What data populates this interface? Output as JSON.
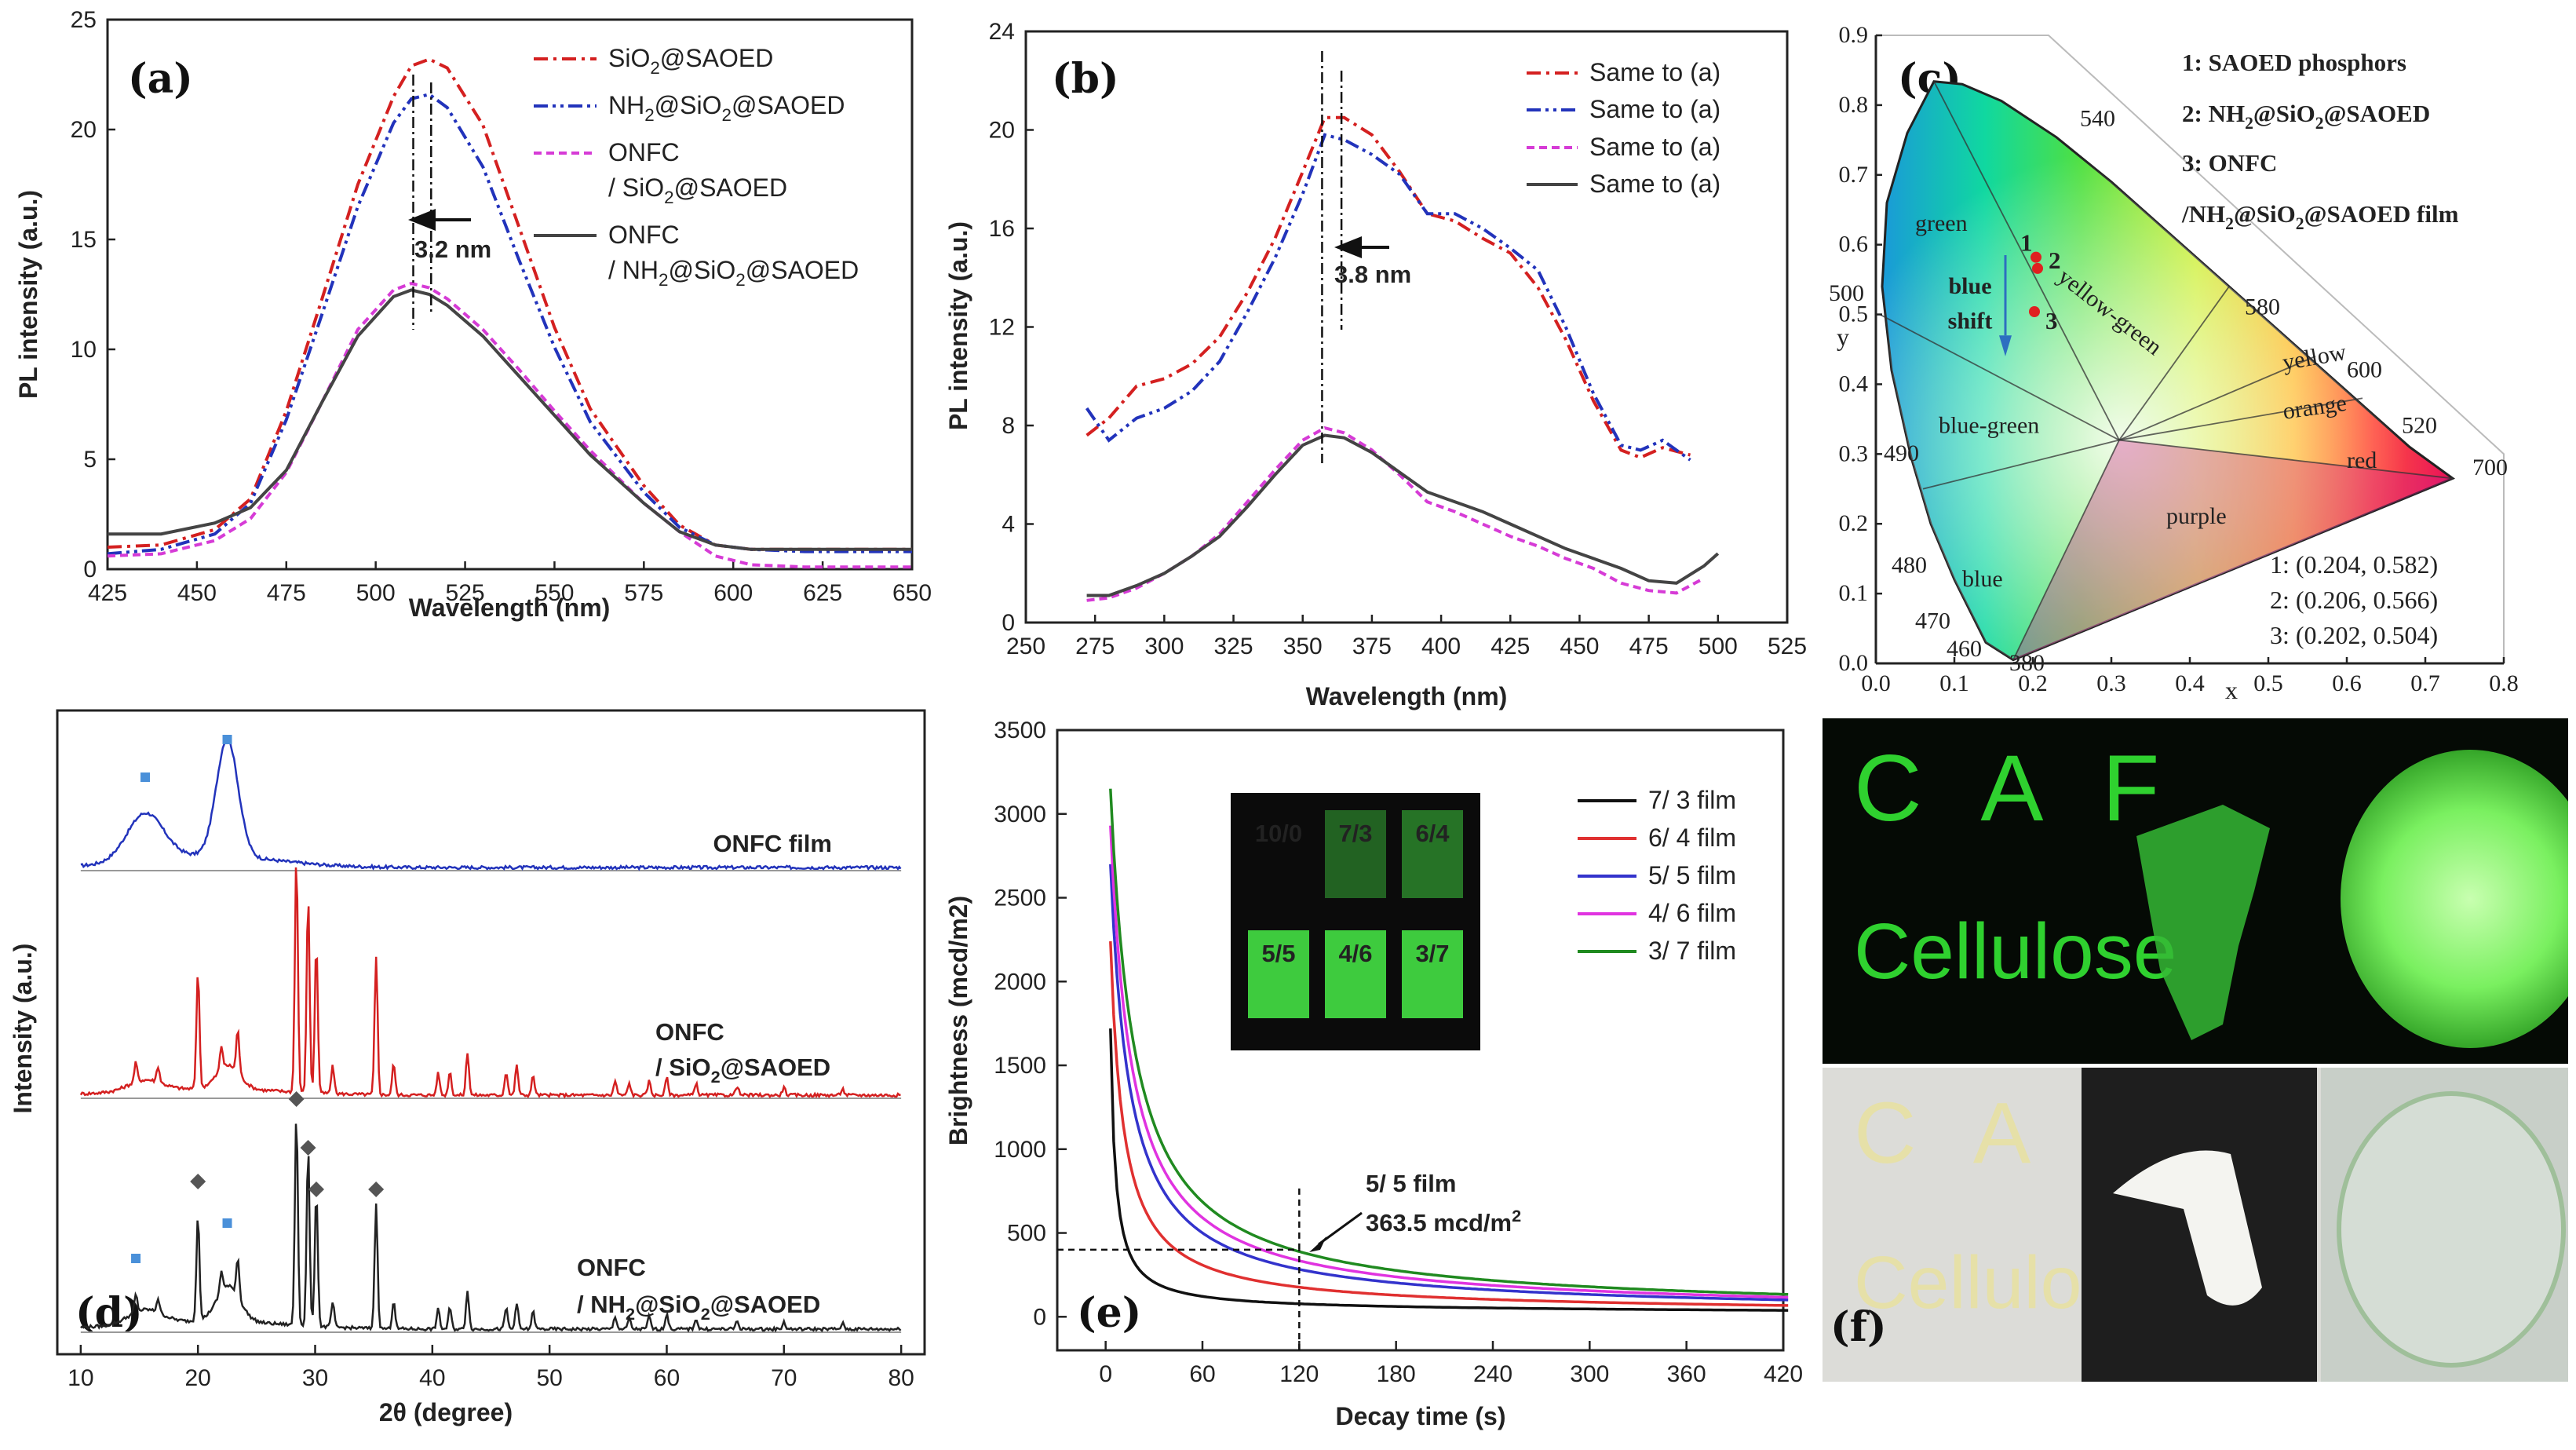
{
  "chart_data": [
    {
      "id": "a",
      "type": "line",
      "panel_label": "(a)",
      "xlabel": "Wavelength (nm)",
      "ylabel": "PL intensity (a.u.)",
      "xlim": [
        425,
        650
      ],
      "ylim": [
        0,
        25
      ],
      "xticks": [
        425,
        450,
        475,
        500,
        525,
        550,
        575,
        600,
        625,
        650
      ],
      "yticks": [
        0,
        5,
        10,
        15,
        20,
        25
      ],
      "series": [
        {
          "name": "SiO2@SAOED",
          "color": "#d42020",
          "dash": "18 7 4 7",
          "x": [
            425,
            440,
            455,
            465,
            475,
            485,
            495,
            505,
            510,
            515,
            520,
            530,
            540,
            550,
            560,
            575,
            585,
            595,
            605,
            620,
            635,
            650
          ],
          "y": [
            1.0,
            1.1,
            1.8,
            3.2,
            7.2,
            12.3,
            17.5,
            21.5,
            22.9,
            23.2,
            22.8,
            20.2,
            15.6,
            11.0,
            7.3,
            3.8,
            2.0,
            1.1,
            0.9,
            0.9,
            0.9,
            0.9
          ]
        },
        {
          "name": "NH2@SiO2@SAOED",
          "color": "#2233bb",
          "dash": "18 6 4 6 4 6",
          "x": [
            425,
            440,
            455,
            465,
            475,
            485,
            495,
            505,
            510,
            515,
            520,
            530,
            540,
            550,
            560,
            575,
            585,
            595,
            605,
            620,
            635,
            650
          ],
          "y": [
            0.7,
            0.9,
            1.6,
            3.0,
            6.8,
            11.6,
            16.5,
            20.3,
            21.4,
            21.6,
            21.0,
            18.3,
            14.1,
            10.1,
            6.7,
            3.5,
            1.9,
            1.1,
            0.9,
            0.8,
            0.8,
            0.8
          ]
        },
        {
          "name": "ONFC / SiO2@SAOED",
          "color": "#d63bd6",
          "dash": "10 6",
          "x": [
            425,
            440,
            455,
            465,
            475,
            485,
            495,
            505,
            510,
            515,
            520,
            530,
            540,
            550,
            560,
            575,
            585,
            595,
            605,
            620,
            635,
            650
          ],
          "y": [
            0.6,
            0.7,
            1.3,
            2.3,
            4.4,
            7.6,
            10.9,
            12.7,
            13.0,
            12.8,
            12.3,
            10.9,
            9.1,
            7.2,
            5.4,
            3.0,
            1.7,
            0.6,
            0.2,
            0.1,
            0.1,
            0.1
          ]
        },
        {
          "name": "ONFC / NH2@SiO2@SAOED",
          "color": "#444444",
          "dash": "",
          "x": [
            425,
            440,
            455,
            465,
            475,
            485,
            495,
            505,
            510,
            515,
            520,
            530,
            540,
            550,
            560,
            575,
            585,
            595,
            605,
            620,
            635,
            650
          ],
          "y": [
            1.6,
            1.6,
            2.1,
            2.8,
            4.5,
            7.6,
            10.6,
            12.4,
            12.7,
            12.5,
            12.0,
            10.6,
            8.8,
            7.0,
            5.2,
            3.0,
            1.7,
            1.1,
            0.9,
            0.9,
            0.9,
            0.9
          ]
        }
      ],
      "legend_lines": [
        "SiO2@SAOED",
        "NH2@SiO2@SAOED",
        "ONFC",
        "/ SiO2@SAOED",
        "ONFC",
        "/ NH2@SiO2@SAOED"
      ],
      "annotation": "3.2 nm"
    },
    {
      "id": "b",
      "type": "line",
      "panel_label": "(b)",
      "xlabel": "Wavelength (nm)",
      "ylabel": "PL intensity (a.u.)",
      "xlim": [
        250,
        525
      ],
      "ylim": [
        0,
        24
      ],
      "xticks": [
        250,
        275,
        300,
        325,
        350,
        375,
        400,
        425,
        450,
        475,
        500,
        525
      ],
      "yticks": [
        0,
        4,
        8,
        12,
        16,
        20,
        24
      ],
      "series": [
        {
          "name": "Same to (a)",
          "color": "#d42020",
          "dash": "18 7 4 7",
          "x": [
            272,
            280,
            290,
            300,
            310,
            320,
            330,
            340,
            350,
            358,
            365,
            375,
            385,
            395,
            405,
            415,
            425,
            435,
            445,
            455,
            465,
            472,
            480,
            490
          ],
          "y": [
            7.6,
            8.3,
            9.6,
            9.9,
            10.5,
            11.6,
            13.4,
            15.6,
            18.3,
            20.5,
            20.5,
            19.8,
            18.3,
            16.6,
            16.3,
            15.6,
            15.0,
            13.6,
            11.5,
            9.0,
            7.0,
            6.7,
            7.1,
            6.8
          ]
        },
        {
          "name": "Same to (a)",
          "color": "#2233bb",
          "dash": "18 6 4 6 4 6",
          "x": [
            272,
            280,
            290,
            300,
            310,
            320,
            330,
            340,
            350,
            358,
            365,
            375,
            385,
            395,
            405,
            415,
            425,
            435,
            445,
            455,
            465,
            472,
            480,
            490
          ],
          "y": [
            8.7,
            7.4,
            8.3,
            8.7,
            9.4,
            10.6,
            12.6,
            14.8,
            17.4,
            19.8,
            19.6,
            19.0,
            18.2,
            16.6,
            16.6,
            16.0,
            15.2,
            14.3,
            12.0,
            9.3,
            7.2,
            7.0,
            7.4,
            6.6
          ]
        },
        {
          "name": "Same to (a)",
          "color": "#d63bd6",
          "dash": "10 6",
          "x": [
            272,
            280,
            290,
            300,
            310,
            320,
            330,
            340,
            350,
            358,
            365,
            375,
            385,
            395,
            405,
            415,
            425,
            435,
            445,
            455,
            465,
            475,
            485,
            495
          ],
          "y": [
            0.9,
            1.0,
            1.4,
            2.0,
            2.7,
            3.6,
            4.9,
            6.2,
            7.4,
            7.9,
            7.7,
            7.0,
            6.0,
            4.9,
            4.5,
            4.0,
            3.5,
            3.1,
            2.6,
            2.2,
            1.6,
            1.3,
            1.2,
            1.8
          ]
        },
        {
          "name": "Same to (a)",
          "color": "#444444",
          "dash": "",
          "x": [
            272,
            280,
            290,
            300,
            310,
            320,
            330,
            340,
            350,
            358,
            365,
            375,
            385,
            395,
            405,
            415,
            425,
            435,
            445,
            455,
            465,
            475,
            485,
            495,
            500
          ],
          "y": [
            1.1,
            1.1,
            1.5,
            2.0,
            2.7,
            3.5,
            4.7,
            6.0,
            7.2,
            7.6,
            7.5,
            6.9,
            6.1,
            5.3,
            4.9,
            4.5,
            4.0,
            3.5,
            3.0,
            2.6,
            2.2,
            1.7,
            1.6,
            2.3,
            2.8
          ]
        }
      ],
      "legend_lines": [
        "Same to (a)",
        "Same to (a)",
        "Same to (a)",
        "Same to (a)"
      ],
      "annotation": "3.8 nm"
    },
    {
      "id": "c",
      "type": "scatter",
      "panel_label": "(c)",
      "xlabel": "x",
      "ylabel": "y",
      "xlim": [
        0,
        0.8
      ],
      "ylim": [
        0,
        0.9
      ],
      "xticks": [
        "0.0",
        "0.1",
        "0.2",
        "0.3",
        "0.4",
        "0.5",
        "0.6",
        "0.7",
        "0.8"
      ],
      "yticks": [
        "0.0",
        "0.1",
        "0.2",
        "0.3",
        "0.4",
        "0.5",
        "0.6",
        "0.7",
        "0.8",
        "0.9"
      ],
      "points": [
        {
          "label": "1",
          "x": 0.204,
          "y": 0.582
        },
        {
          "label": "2",
          "x": 0.206,
          "y": 0.566
        },
        {
          "label": "3",
          "x": 0.202,
          "y": 0.504
        }
      ],
      "wavelength_labels": [
        "540",
        "500",
        "580",
        "600",
        "520",
        "700",
        "490",
        "480",
        "470",
        "460",
        "380"
      ],
      "region_labels": [
        "green",
        "yellow-green",
        "yellow",
        "orange",
        "red",
        "blue-green",
        "purple",
        "blue"
      ],
      "shift_label": [
        "blue",
        "shift"
      ],
      "legend": [
        "1:  SAOED phosphors",
        "2:  NH2@SiO2@SAOED",
        "3:  ONFC",
        "/NH2@SiO2@SAOED film"
      ],
      "coords": [
        "1: (0.204, 0.582)",
        "2: (0.206, 0.566)",
        "3: (0.202, 0.504)"
      ]
    },
    {
      "id": "d",
      "type": "line",
      "panel_label": "(d)",
      "xlabel": "2θ (degree)",
      "ylabel": "Intensity (a.u.)",
      "xlim": [
        10,
        80
      ],
      "xticks": [
        10,
        20,
        30,
        40,
        50,
        60,
        70,
        80
      ],
      "series": [
        {
          "name": "ONFC film",
          "color": "#2233bb",
          "label_lines": [
            "ONFC film"
          ]
        },
        {
          "name": "ONFC / SiO2@SAOED",
          "color": "#d42020",
          "label_lines": [
            "ONFC",
            "/ SiO2@SAOED"
          ]
        },
        {
          "name": "ONFC / NH2@SiO2@SAOED",
          "color": "#222222",
          "label_lines": [
            "ONFC",
            "/ NH2@SiO2@SAOED"
          ]
        }
      ],
      "cellulose_peaks": [
        15.5,
        22.5
      ],
      "phosphor_peaks": [
        20.0,
        28.4,
        29.4,
        30.1,
        35.2
      ]
    },
    {
      "id": "e",
      "type": "line",
      "panel_label": "(e)",
      "xlabel": "Decay time (s)",
      "ylabel": "Brightness (mcd/m2)",
      "xlim": [
        -30,
        420
      ],
      "ylim": [
        -200,
        3500
      ],
      "xticks": [
        0,
        60,
        120,
        180,
        240,
        300,
        360,
        420
      ],
      "yticks": [
        0,
        500,
        1000,
        1500,
        2000,
        2500,
        3000,
        3500
      ],
      "series": [
        {
          "name": "7/ 3 film",
          "color": "#111111",
          "I0": 1680,
          "t": 3
        },
        {
          "name": "6/ 4 film",
          "color": "#e03030",
          "I0": 2200,
          "t": 8
        },
        {
          "name": "5/ 5 film",
          "color": "#3333cc",
          "I0": 2660,
          "t": 12
        },
        {
          "name": "4/ 6 film",
          "color": "#e033e0",
          "I0": 2890,
          "t": 13.5
        },
        {
          "name": "3/ 7 film",
          "color": "#208a20",
          "I0": 3110,
          "t": 15
        }
      ],
      "inset_labels": [
        "10/0",
        "7/3",
        "6/4",
        "5/5",
        "4/6",
        "3/7"
      ],
      "annotation": [
        "5/ 5 film",
        "363.5 mcd/m2"
      ],
      "marker_x": 120,
      "marker_y": 400
    }
  ],
  "photos": {
    "panel_label": "(f)",
    "text_top": [
      "C A F",
      "Cellulose"
    ],
    "text_bottom": [
      "C A F",
      "Cellulose"
    ]
  }
}
